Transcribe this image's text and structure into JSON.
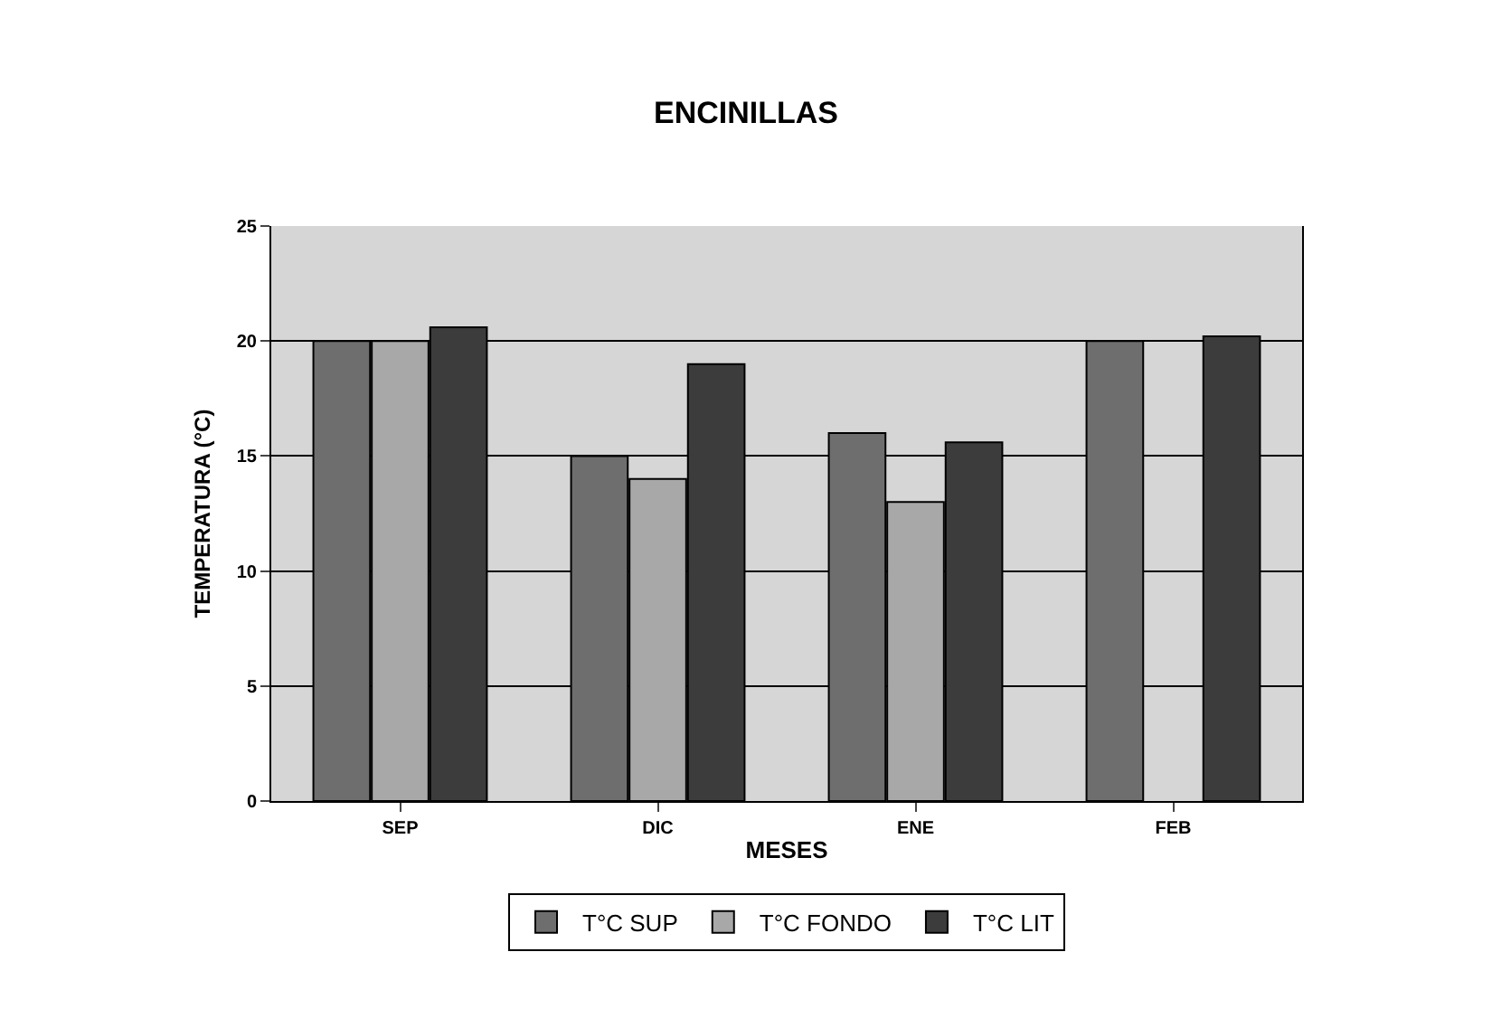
{
  "chart_data": {
    "type": "bar",
    "title": "ENCINILLAS",
    "xlabel": "MESES",
    "ylabel": "TEMPERATURA (°C)",
    "categories": [
      "SEP",
      "DIC",
      "ENE",
      "FEB"
    ],
    "series": [
      {
        "name": "T°C SUP",
        "color": "#6e6e6e",
        "values": [
          20,
          15,
          16,
          20
        ]
      },
      {
        "name": "T°C FONDO",
        "color": "#a8a8a8",
        "values": [
          20,
          14,
          13,
          null
        ]
      },
      {
        "name": "T°C LIT",
        "color": "#3c3c3c",
        "values": [
          20.6,
          19,
          15.6,
          20.2
        ]
      }
    ],
    "ylim": [
      0,
      25
    ],
    "yticks": [
      0,
      5,
      10,
      15,
      20,
      25
    ],
    "grid": "y",
    "legend": "bottom"
  }
}
